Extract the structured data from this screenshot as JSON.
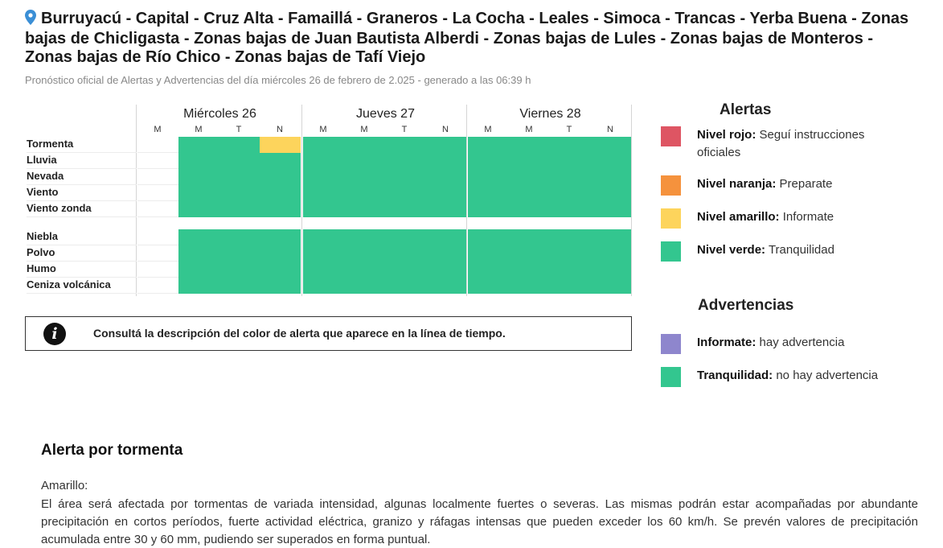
{
  "header": {
    "pin_icon": "map-pin-icon",
    "title": "Burruyacú - Capital - Cruz Alta - Famaillá - Graneros - La Cocha - Leales - Simoca - Trancas - Yerba Buena - Zonas bajas de Chicligasta - Zonas bajas de Juan Bautista Alberdi - Zonas bajas de Lules - Zonas bajas de Monteros - Zonas bajas de Río Chico - Zonas bajas de Tafí Viejo",
    "subtitle": "Pronóstico oficial de Alertas y Advertencias del día miércoles 26 de febrero de 2.025 - generado a las 06:39 h"
  },
  "colors": {
    "verde": "#33c68f",
    "amarillo": "#fdd45c",
    "naranja": "#f5923d",
    "rojo": "#de5563",
    "violeta": "#8e86cd",
    "empty": "#ffffff"
  },
  "timeline": {
    "days": [
      "Miércoles 26",
      "Jueves 27",
      "Viernes 28"
    ],
    "slots": [
      "M",
      "M",
      "T",
      "N"
    ],
    "rows": [
      {
        "label": "Tormenta",
        "levels": [
          "none",
          "verde",
          "verde",
          "amarillo",
          "verde",
          "verde",
          "verde",
          "verde",
          "verde",
          "verde",
          "verde",
          "verde"
        ]
      },
      {
        "label": "Lluvia",
        "levels": [
          "none",
          "verde",
          "verde",
          "verde",
          "verde",
          "verde",
          "verde",
          "verde",
          "verde",
          "verde",
          "verde",
          "verde"
        ]
      },
      {
        "label": "Nevada",
        "levels": [
          "none",
          "verde",
          "verde",
          "verde",
          "verde",
          "verde",
          "verde",
          "verde",
          "verde",
          "verde",
          "verde",
          "verde"
        ]
      },
      {
        "label": "Viento",
        "levels": [
          "none",
          "verde",
          "verde",
          "verde",
          "verde",
          "verde",
          "verde",
          "verde",
          "verde",
          "verde",
          "verde",
          "verde"
        ]
      },
      {
        "label": "Viento zonda",
        "levels": [
          "none",
          "verde",
          "verde",
          "verde",
          "verde",
          "verde",
          "verde",
          "verde",
          "verde",
          "verde",
          "verde",
          "verde"
        ]
      },
      {
        "label": "Niebla",
        "levels": [
          "none",
          "verde",
          "verde",
          "verde",
          "verde",
          "verde",
          "verde",
          "verde",
          "verde",
          "verde",
          "verde",
          "verde"
        ]
      },
      {
        "label": "Polvo",
        "levels": [
          "none",
          "verde",
          "verde",
          "verde",
          "verde",
          "verde",
          "verde",
          "verde",
          "verde",
          "verde",
          "verde",
          "verde"
        ]
      },
      {
        "label": "Humo",
        "levels": [
          "none",
          "verde",
          "verde",
          "verde",
          "verde",
          "verde",
          "verde",
          "verde",
          "verde",
          "verde",
          "verde",
          "verde"
        ]
      },
      {
        "label": "Ceniza volcánica",
        "levels": [
          "none",
          "verde",
          "verde",
          "verde",
          "verde",
          "verde",
          "verde",
          "verde",
          "verde",
          "verde",
          "verde",
          "verde"
        ]
      }
    ]
  },
  "info": {
    "icon": "info-icon",
    "text": "Consultá la descripción del color de alerta que aparece en la línea de tiempo."
  },
  "alertas": {
    "title": "Alertas",
    "items": [
      {
        "color": "rojo",
        "level": "Nivel rojo:",
        "text": "Seguí instrucciones oficiales"
      },
      {
        "color": "naranja",
        "level": "Nivel naranja:",
        "text": "Preparate"
      },
      {
        "color": "amarillo",
        "level": "Nivel amarillo:",
        "text": "Informate"
      },
      {
        "color": "verde",
        "level": "Nivel verde:",
        "text": "Tranquilidad"
      }
    ]
  },
  "advertencias": {
    "title": "Advertencias",
    "items": [
      {
        "color": "violeta",
        "level": "Informate:",
        "text": "hay advertencia"
      },
      {
        "color": "verde",
        "level": "Tranquilidad:",
        "text": "no hay advertencia"
      }
    ]
  },
  "detalle": {
    "title": "Alerta por tormenta",
    "level": "Amarillo:",
    "description": "El área será afectada por tormentas de variada intensidad, algunas localmente fuertes o severas. Las mismas podrán estar acompañadas por abundante precipitación en cortos períodos, fuerte actividad eléctrica, granizo y ráfagas intensas que pueden exceder los 60 km/h. Se prevén valores de precipitación acumulada entre 30 y 60 mm, pudiendo ser superados en forma puntual."
  }
}
